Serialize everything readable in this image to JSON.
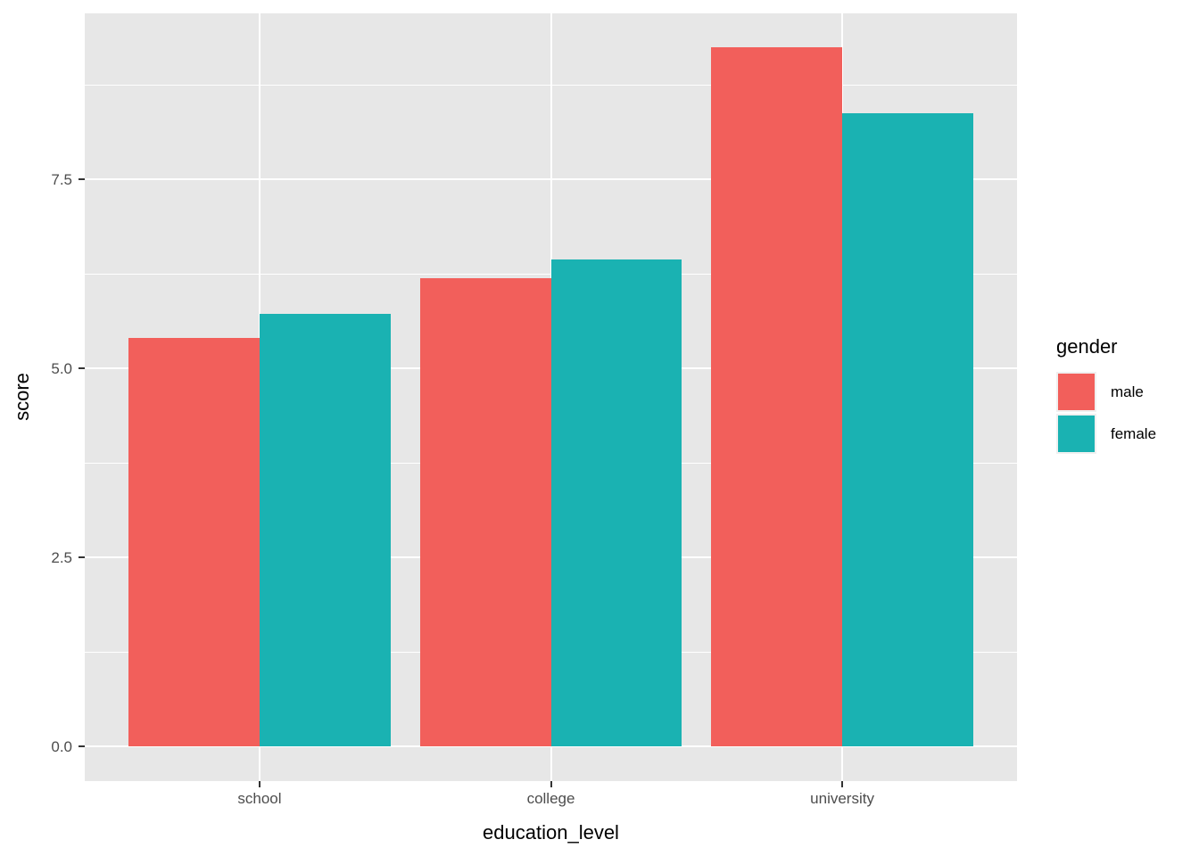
{
  "chart_data": {
    "type": "bar",
    "title": "",
    "orientation": "vertical",
    "grouping": "dodge",
    "categories": [
      "school",
      "college",
      "university"
    ],
    "series": [
      {
        "name": "male",
        "color": "#F25F5B",
        "values": [
          5.4,
          6.2,
          9.25
        ]
      },
      {
        "name": "female",
        "color": "#1AB2B2",
        "values": [
          5.72,
          6.44,
          8.38
        ]
      }
    ],
    "xlabel": "education_level",
    "ylabel": "score",
    "ylim": [
      -0.46,
      9.7
    ],
    "yticks": [
      0.0,
      2.5,
      5.0,
      7.5
    ],
    "ytick_labels": [
      "0.0",
      "2.5",
      "5.0",
      "7.5"
    ],
    "yminor": [
      1.25,
      3.75,
      6.25,
      8.75
    ],
    "legend_title": "gender",
    "legend_position": "right",
    "grid": "major-and-minor",
    "panel_bg": "#E7E7E7",
    "grid_color": "#FFFFFF",
    "tick_color": "#333333",
    "axis_text_color": "#4D4D4D",
    "axis_title_color": "#000000"
  }
}
